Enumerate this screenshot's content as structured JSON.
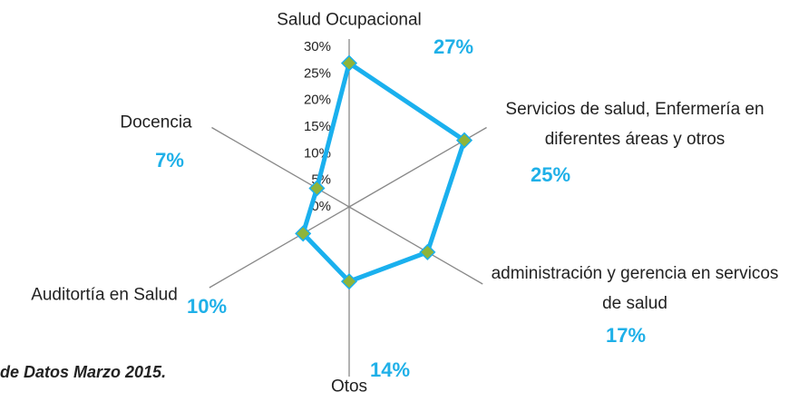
{
  "chart_data": {
    "type": "radar",
    "categories": [
      "Salud Ocupacional",
      "Servicios de salud, Enfermería en diferentes áreas y otros",
      "administración y gerencia en servicos de salud",
      "Otos",
      "Auditortía en Salud",
      "Docencia"
    ],
    "values": [
      27,
      25,
      17,
      14,
      10,
      7
    ],
    "value_labels": [
      "27%",
      "25%",
      "17%",
      "14%",
      "10%",
      "7%"
    ],
    "color": "#1ab0ee",
    "marker_color": "#8fb43a",
    "ylim": [
      0,
      30
    ],
    "yticks": [
      {
        "value": 0,
        "label": "0%"
      },
      {
        "value": 5,
        "label": "5%"
      },
      {
        "value": 10,
        "label": "10%"
      },
      {
        "value": 15,
        "label": "15%"
      },
      {
        "value": 20,
        "label": "20%"
      },
      {
        "value": 25,
        "label": "25%"
      },
      {
        "value": 30,
        "label": "30%"
      }
    ],
    "note": "de Datos Marzo 2015."
  }
}
